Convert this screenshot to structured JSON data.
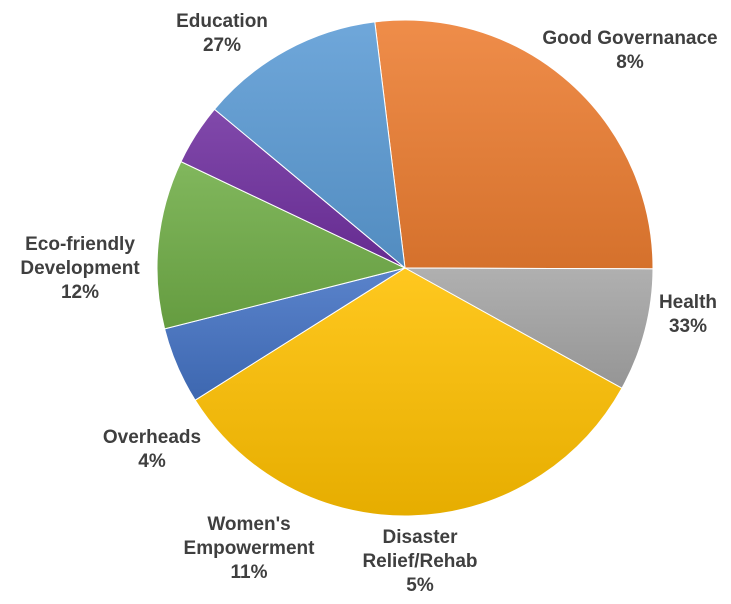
{
  "chart_data": {
    "type": "pie",
    "title": "",
    "slices": [
      {
        "label": [
          "Education"
        ],
        "value": 27,
        "percent_label": "27%",
        "color": "#ED7D31"
      },
      {
        "label": [
          "Good Governanace"
        ],
        "value": 8,
        "percent_label": "8%",
        "color": "#A5A5A5"
      },
      {
        "label": [
          "Health"
        ],
        "value": 33,
        "percent_label": "33%",
        "color": "#FFC000"
      },
      {
        "label": [
          "Disaster",
          "Relief/Rehab"
        ],
        "value": 5,
        "percent_label": "5%",
        "color": "#4472C4"
      },
      {
        "label": [
          "Women's",
          "Empowerment"
        ],
        "value": 11,
        "percent_label": "11%",
        "color": "#70AD47"
      },
      {
        "label": [
          "Overheads"
        ],
        "value": 4,
        "percent_label": "4%",
        "color": "#7030A0"
      },
      {
        "label": [
          "Eco-friendly",
          "Development"
        ],
        "value": 12,
        "percent_label": "12%",
        "color": "#5B9BD5"
      }
    ],
    "legend": "none",
    "labels_position": "outside"
  }
}
